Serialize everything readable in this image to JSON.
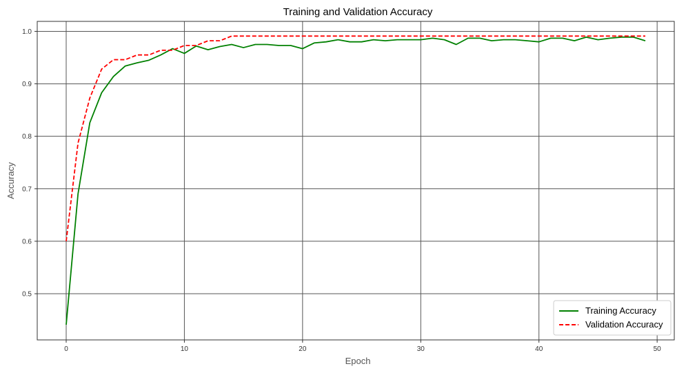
{
  "chart_data": {
    "type": "line",
    "title": "Training and Validation Accuracy",
    "xlabel": "Epoch",
    "ylabel": "Accuracy",
    "xlim": [
      -2.45,
      51.45
    ],
    "ylim": [
      0.412,
      1.019
    ],
    "xticks": [
      0,
      10,
      20,
      30,
      40,
      50
    ],
    "yticks": [
      0.5,
      0.6,
      0.7,
      0.8,
      0.9,
      1.0
    ],
    "grid": true,
    "legend_position": "bottom-right",
    "x": [
      0,
      1,
      2,
      3,
      4,
      5,
      6,
      7,
      8,
      9,
      10,
      11,
      12,
      13,
      14,
      15,
      16,
      17,
      18,
      19,
      20,
      21,
      22,
      23,
      24,
      25,
      26,
      27,
      28,
      29,
      30,
      31,
      32,
      33,
      34,
      35,
      36,
      37,
      38,
      39,
      40,
      41,
      42,
      43,
      44,
      45,
      46,
      47,
      48,
      49
    ],
    "series": [
      {
        "name": "Training Accuracy",
        "color": "#008000",
        "style": "solid",
        "values": [
          0.441,
          0.69,
          0.826,
          0.883,
          0.914,
          0.934,
          0.94,
          0.945,
          0.955,
          0.967,
          0.958,
          0.972,
          0.965,
          0.971,
          0.975,
          0.969,
          0.975,
          0.975,
          0.973,
          0.973,
          0.967,
          0.978,
          0.98,
          0.984,
          0.98,
          0.98,
          0.984,
          0.982,
          0.984,
          0.984,
          0.984,
          0.987,
          0.984,
          0.975,
          0.987,
          0.987,
          0.982,
          0.984,
          0.984,
          0.982,
          0.98,
          0.987,
          0.987,
          0.982,
          0.989,
          0.984,
          0.987,
          0.989,
          0.989,
          0.982
        ]
      },
      {
        "name": "Validation Accuracy",
        "color": "#ff0000",
        "style": "dashed",
        "values": [
          0.6,
          0.787,
          0.873,
          0.928,
          0.946,
          0.946,
          0.955,
          0.955,
          0.964,
          0.964,
          0.973,
          0.973,
          0.982,
          0.982,
          0.991,
          0.991,
          0.991,
          0.991,
          0.991,
          0.991,
          0.991,
          0.991,
          0.991,
          0.991,
          0.991,
          0.991,
          0.991,
          0.991,
          0.991,
          0.991,
          0.991,
          0.991,
          0.991,
          0.991,
          0.991,
          0.991,
          0.991,
          0.991,
          0.991,
          0.991,
          0.991,
          0.991,
          0.991,
          0.991,
          0.991,
          0.991,
          0.991,
          0.991,
          0.991,
          0.991
        ]
      }
    ]
  }
}
